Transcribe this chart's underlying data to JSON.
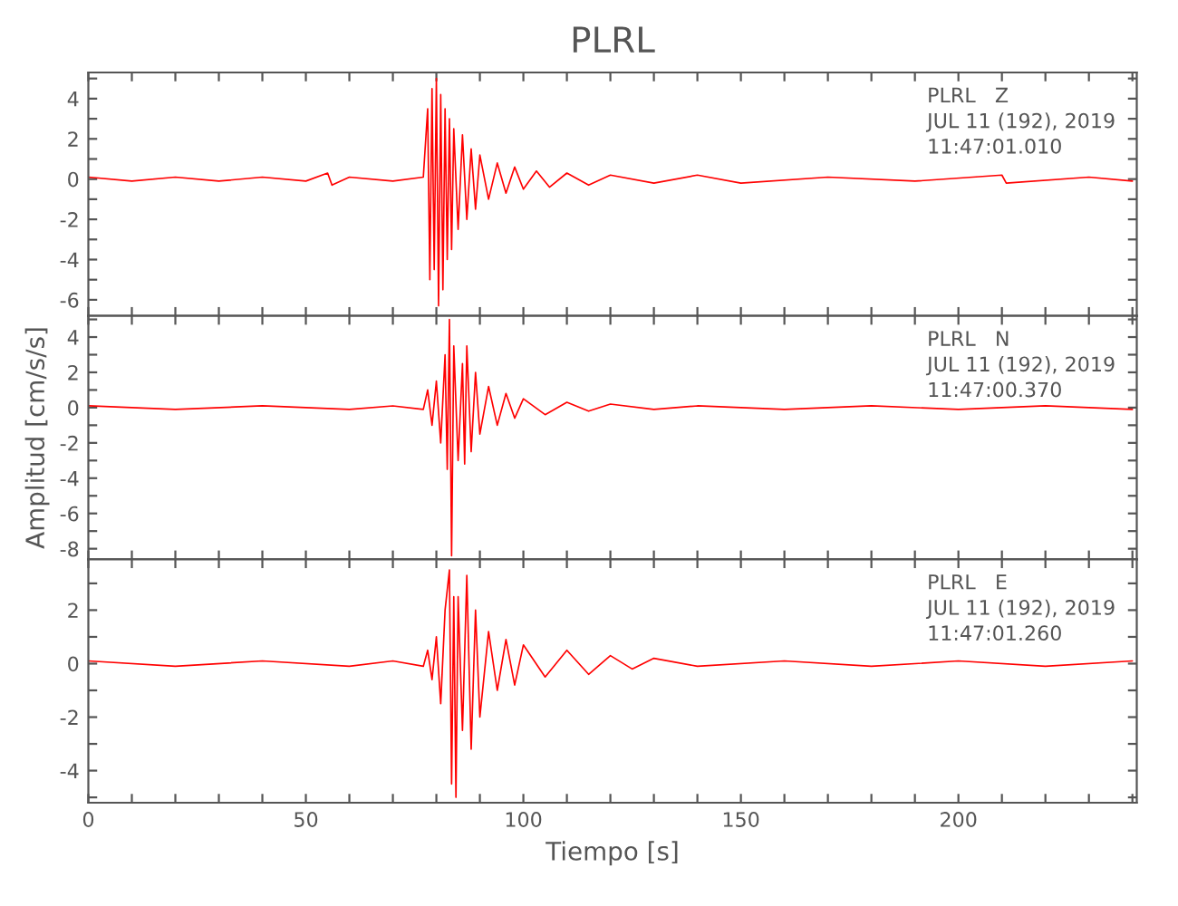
{
  "chart_data": [
    {
      "type": "line",
      "title": "PLRL",
      "annotations": [
        "PLRL   Z",
        "JUL 11 (192), 2019",
        "11:47:01.010"
      ],
      "x": [
        0,
        10,
        20,
        30,
        40,
        50,
        55,
        56,
        60,
        70,
        77,
        78,
        78.5,
        79,
        79.5,
        80,
        80.5,
        81,
        81.5,
        82,
        82.5,
        83,
        83.5,
        84,
        85,
        86,
        87,
        88,
        89,
        90,
        92,
        94,
        96,
        98,
        100,
        103,
        106,
        110,
        115,
        120,
        130,
        140,
        150,
        170,
        190,
        210,
        211,
        230,
        240
      ],
      "series": [
        {
          "color": "#ff0000",
          "values": [
            0.1,
            -0.1,
            0.1,
            -0.1,
            0.1,
            -0.1,
            0.3,
            -0.3,
            0.1,
            -0.1,
            0.1,
            3.5,
            -5.0,
            4.5,
            -4.5,
            5.0,
            -6.3,
            4.2,
            -5.5,
            3.5,
            -4.0,
            3.0,
            -3.5,
            2.5,
            -2.5,
            2.2,
            -2.0,
            1.5,
            -1.5,
            1.2,
            -1.0,
            0.8,
            -0.7,
            0.6,
            -0.5,
            0.4,
            -0.4,
            0.3,
            -0.3,
            0.2,
            -0.2,
            0.2,
            -0.2,
            0.1,
            -0.1,
            0.2,
            -0.2,
            0.1,
            -0.1
          ]
        }
      ],
      "xlim": [
        0,
        241
      ],
      "ylim": [
        -6.8,
        5.3
      ],
      "xticks": [
        {
          "value": 0,
          "label": null
        },
        {
          "value": 10,
          "label": null
        },
        {
          "value": 20,
          "label": null
        },
        {
          "value": 30,
          "label": null
        },
        {
          "value": 40,
          "label": null
        },
        {
          "value": 50,
          "label": null
        },
        {
          "value": 60,
          "label": null
        },
        {
          "value": 70,
          "label": null
        },
        {
          "value": 80,
          "label": null
        },
        {
          "value": 90,
          "label": null
        },
        {
          "value": 100,
          "label": null
        },
        {
          "value": 110,
          "label": null
        },
        {
          "value": 120,
          "label": null
        },
        {
          "value": 130,
          "label": null
        },
        {
          "value": 140,
          "label": null
        },
        {
          "value": 150,
          "label": null
        },
        {
          "value": 160,
          "label": null
        },
        {
          "value": 170,
          "label": null
        },
        {
          "value": 180,
          "label": null
        },
        {
          "value": 190,
          "label": null
        },
        {
          "value": 200,
          "label": null
        },
        {
          "value": 210,
          "label": null
        },
        {
          "value": 220,
          "label": null
        },
        {
          "value": 230,
          "label": null
        },
        {
          "value": 240,
          "label": null
        }
      ],
      "yticks": [
        -6,
        {
          "value": -5,
          "label": null
        },
        -4,
        {
          "value": -3,
          "label": null
        },
        -2,
        {
          "value": -1,
          "label": null
        },
        0,
        {
          "value": 1,
          "label": null
        },
        2,
        {
          "value": 3,
          "label": null
        },
        4,
        {
          "value": 5,
          "label": null
        }
      ],
      "tick_labels": "y",
      "grid": false,
      "marker": "none",
      "line_style": "solid"
    },
    {
      "type": "line",
      "ylabel": "Amplitud [cm/s/s]",
      "annotations": [
        "PLRL   N",
        "JUL 11 (192), 2019",
        "11:47:00.370"
      ],
      "x": [
        0,
        20,
        40,
        60,
        70,
        77,
        78,
        79,
        80,
        81,
        82,
        82.5,
        83,
        83.5,
        84,
        85,
        86,
        86.5,
        87,
        88,
        89,
        90,
        92,
        94,
        96,
        98,
        100,
        105,
        110,
        115,
        120,
        130,
        140,
        160,
        180,
        200,
        220,
        240
      ],
      "series": [
        {
          "color": "#ff0000",
          "values": [
            0.1,
            -0.1,
            0.1,
            -0.1,
            0.1,
            -0.1,
            1.0,
            -1.0,
            1.5,
            -2.0,
            3.0,
            -3.5,
            5.0,
            -8.4,
            3.5,
            -3.0,
            2.5,
            -3.2,
            3.5,
            -2.5,
            2.0,
            -1.5,
            1.2,
            -1.0,
            0.8,
            -0.6,
            0.5,
            -0.4,
            0.3,
            -0.2,
            0.2,
            -0.1,
            0.1,
            -0.1,
            0.1,
            -0.1,
            0.1,
            -0.1
          ]
        }
      ],
      "xlim": [
        0,
        241
      ],
      "ylim": [
        -8.6,
        5.2
      ],
      "xticks": [
        {
          "value": 0,
          "label": null
        },
        {
          "value": 10,
          "label": null
        },
        {
          "value": 20,
          "label": null
        },
        {
          "value": 30,
          "label": null
        },
        {
          "value": 40,
          "label": null
        },
        {
          "value": 50,
          "label": null
        },
        {
          "value": 60,
          "label": null
        },
        {
          "value": 70,
          "label": null
        },
        {
          "value": 80,
          "label": null
        },
        {
          "value": 90,
          "label": null
        },
        {
          "value": 100,
          "label": null
        },
        {
          "value": 110,
          "label": null
        },
        {
          "value": 120,
          "label": null
        },
        {
          "value": 130,
          "label": null
        },
        {
          "value": 140,
          "label": null
        },
        {
          "value": 150,
          "label": null
        },
        {
          "value": 160,
          "label": null
        },
        {
          "value": 170,
          "label": null
        },
        {
          "value": 180,
          "label": null
        },
        {
          "value": 190,
          "label": null
        },
        {
          "value": 200,
          "label": null
        },
        {
          "value": 210,
          "label": null
        },
        {
          "value": 220,
          "label": null
        },
        {
          "value": 230,
          "label": null
        },
        {
          "value": 240,
          "label": null
        }
      ],
      "yticks": [
        -8,
        {
          "value": -7,
          "label": null
        },
        -6,
        {
          "value": -5,
          "label": null
        },
        -4,
        {
          "value": -3,
          "label": null
        },
        -2,
        {
          "value": -1,
          "label": null
        },
        0,
        {
          "value": 1,
          "label": null
        },
        2,
        {
          "value": 3,
          "label": null
        },
        4,
        {
          "value": 5,
          "label": null
        }
      ],
      "tick_labels": "y",
      "grid": false,
      "marker": "none",
      "line_style": "solid"
    },
    {
      "type": "line",
      "xlabel": "Tiempo [s]",
      "annotations": [
        "PLRL   E",
        "JUL 11 (192), 2019",
        "11:47:01.260"
      ],
      "x": [
        0,
        20,
        40,
        60,
        70,
        77,
        78,
        79,
        80,
        81,
        82,
        83,
        83.5,
        84,
        84.5,
        85,
        86,
        87,
        88,
        89,
        90,
        92,
        94,
        96,
        98,
        100,
        105,
        110,
        115,
        120,
        125,
        130,
        140,
        160,
        180,
        200,
        220,
        240
      ],
      "series": [
        {
          "color": "#ff0000",
          "values": [
            0.1,
            -0.1,
            0.1,
            -0.1,
            0.1,
            -0.1,
            0.5,
            -0.6,
            1.0,
            -1.5,
            2.0,
            3.5,
            -4.5,
            2.5,
            -5.0,
            2.5,
            -2.5,
            3.3,
            -3.2,
            2.0,
            -2.0,
            1.2,
            -1.0,
            0.9,
            -0.8,
            0.7,
            -0.5,
            0.5,
            -0.4,
            0.3,
            -0.2,
            0.2,
            -0.1,
            0.1,
            -0.1,
            0.1,
            -0.1,
            0.1
          ]
        }
      ],
      "xlim": [
        0,
        241
      ],
      "ylim": [
        -5.2,
        3.9
      ],
      "xticks": [
        0,
        {
          "value": 10,
          "label": null
        },
        {
          "value": 20,
          "label": null
        },
        {
          "value": 30,
          "label": null
        },
        {
          "value": 40,
          "label": null
        },
        50,
        {
          "value": 60,
          "label": null
        },
        {
          "value": 70,
          "label": null
        },
        {
          "value": 80,
          "label": null
        },
        {
          "value": 90,
          "label": null
        },
        100,
        {
          "value": 110,
          "label": null
        },
        {
          "value": 120,
          "label": null
        },
        {
          "value": 130,
          "label": null
        },
        {
          "value": 140,
          "label": null
        },
        150,
        {
          "value": 160,
          "label": null
        },
        {
          "value": 170,
          "label": null
        },
        {
          "value": 180,
          "label": null
        },
        {
          "value": 190,
          "label": null
        },
        200,
        {
          "value": 210,
          "label": null
        },
        {
          "value": 220,
          "label": null
        },
        {
          "value": 230,
          "label": null
        },
        {
          "value": 240,
          "label": null
        }
      ],
      "yticks": [
        -4,
        {
          "value": -5,
          "label": null
        },
        {
          "value": -3,
          "label": null
        },
        -2,
        {
          "value": -1,
          "label": null
        },
        0,
        {
          "value": 1,
          "label": null
        },
        2,
        {
          "value": 3,
          "label": null
        }
      ],
      "grid": false,
      "marker": "none",
      "line_style": "solid"
    }
  ]
}
